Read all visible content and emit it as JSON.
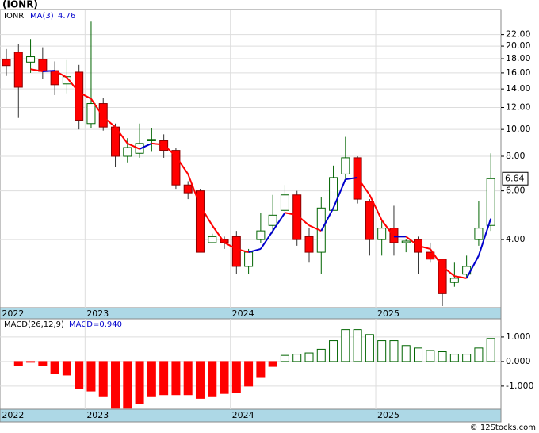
{
  "chart_data": [
    {
      "type": "candlestick",
      "title": "(IONR)",
      "symbol": "IONR",
      "categories": [
        "2022",
        null,
        null,
        null,
        null,
        null,
        null,
        "2023",
        null,
        null,
        null,
        null,
        null,
        null,
        null,
        null,
        null,
        null,
        null,
        "2024",
        null,
        null,
        null,
        null,
        null,
        null,
        null,
        null,
        null,
        null,
        null,
        "2025",
        null,
        null,
        null,
        null,
        null,
        null,
        null,
        null,
        null
      ],
      "open": [
        17.9,
        19.0,
        17.5,
        17.9,
        16.3,
        14.6,
        16.1,
        10.5,
        12.4,
        10.2,
        8.0,
        8.2,
        9.1,
        9.1,
        8.4,
        6.3,
        6.0,
        3.9,
        4.0,
        4.1,
        3.2,
        4.0,
        4.5,
        5.1,
        5.8,
        4.1,
        3.6,
        5.1,
        6.9,
        7.9,
        5.5,
        4.0,
        4.4,
        3.9,
        4.0,
        3.6,
        3.4,
        2.8,
        3.0,
        4.0,
        4.5
      ],
      "high": [
        19.5,
        20.4,
        21.2,
        19.8,
        17.6,
        17.8,
        17.1,
        24.5,
        13.0,
        10.5,
        9.3,
        10.5,
        10.1,
        9.6,
        8.6,
        6.5,
        6.1,
        4.2,
        4.1,
        4.3,
        3.7,
        5.0,
        5.8,
        6.3,
        6.0,
        4.4,
        5.7,
        7.4,
        9.4,
        8.0,
        5.6,
        4.7,
        5.3,
        4.0,
        4.1,
        3.9,
        3.4,
        3.3,
        3.5,
        5.5,
        8.2
      ],
      "low": [
        15.6,
        11.0,
        16.0,
        15.2,
        13.3,
        13.5,
        10.0,
        10.1,
        9.9,
        7.3,
        7.6,
        7.9,
        8.3,
        7.9,
        6.1,
        5.6,
        3.6,
        3.9,
        3.7,
        3.0,
        3.0,
        3.9,
        4.2,
        4.9,
        3.8,
        3.3,
        3.0,
        5.1,
        6.5,
        5.4,
        3.5,
        3.5,
        3.5,
        3.6,
        3.0,
        3.3,
        2.3,
        2.7,
        2.9,
        3.8,
        4.3
      ],
      "close": [
        17.0,
        14.2,
        18.3,
        16.2,
        14.5,
        15.5,
        10.8,
        12.4,
        10.2,
        8.0,
        8.6,
        8.9,
        9.2,
        8.4,
        6.3,
        5.9,
        3.6,
        4.1,
        3.9,
        3.2,
        3.6,
        4.3,
        4.9,
        5.8,
        4.0,
        3.6,
        5.2,
        6.7,
        7.9,
        5.6,
        4.0,
        4.4,
        3.9,
        3.95,
        3.6,
        3.4,
        2.55,
        2.9,
        3.2,
        4.4,
        6.64
      ],
      "up_color": "#006400",
      "down_color": "#ff0000",
      "series": [
        {
          "name": "MA(3)",
          "color": "#0000cc",
          "down_color": "#ff0000",
          "values": [
            null,
            null,
            16.5,
            16.2,
            16.3,
            15.4,
            13.6,
            12.9,
            11.1,
            10.2,
            8.9,
            8.5,
            8.9,
            8.8,
            8.0,
            6.9,
            5.3,
            4.5,
            3.9,
            3.7,
            3.6,
            3.7,
            4.3,
            5.0,
            4.9,
            4.5,
            4.3,
            5.2,
            6.6,
            6.7,
            5.8,
            4.7,
            4.1,
            4.1,
            3.8,
            3.7,
            3.2,
            2.95,
            2.9,
            3.5,
            4.76
          ]
        }
      ],
      "log_scale": true,
      "ylim": [
        2.27,
        27.1
      ],
      "yticks": [
        {
          "value": 4,
          "label": "4.00"
        },
        {
          "value": 6,
          "label": "6.00"
        },
        {
          "value": 8,
          "label": "8.00"
        },
        {
          "value": 10,
          "label": "10.00"
        },
        {
          "value": 12,
          "label": "12.00"
        },
        {
          "value": 14,
          "label": "14.00"
        },
        {
          "value": 16,
          "label": "16.00"
        },
        {
          "value": 18,
          "label": "18.00"
        },
        {
          "value": 20,
          "label": "20.00"
        },
        {
          "value": 22,
          "label": "22.00"
        }
      ],
      "grid": true
    },
    {
      "type": "bar",
      "title": "MACD(26,12,9)",
      "macd_label": "MACD=0.940",
      "values": [
        null,
        -0.17,
        -0.03,
        -0.17,
        -0.5,
        -0.55,
        -1.1,
        -1.2,
        -1.4,
        -1.9,
        -1.9,
        -1.7,
        -1.4,
        -1.35,
        -1.35,
        -1.35,
        -1.5,
        -1.4,
        -1.3,
        -1.25,
        -1.0,
        -0.65,
        -0.2,
        0.25,
        0.3,
        0.35,
        0.5,
        0.85,
        1.3,
        1.3,
        1.1,
        0.85,
        0.85,
        0.65,
        0.55,
        0.45,
        0.4,
        0.3,
        0.3,
        0.55,
        0.94
      ],
      "up_color": "#006400",
      "down_color": "#ff0000",
      "ylim": [
        -1.94,
        1.74
      ],
      "yticks": [
        {
          "value": -1,
          "label": "-1.000"
        },
        {
          "value": 0,
          "label": "0.000"
        },
        {
          "value": 1,
          "label": "1.000"
        }
      ],
      "grid": true
    }
  ],
  "footer": "© 12Stocks.com"
}
